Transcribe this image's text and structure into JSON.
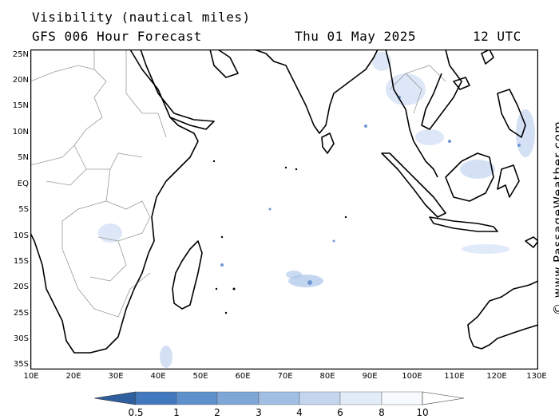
{
  "title_line1": "Visibility (nautical miles)",
  "model_line": "GFS 006 Hour Forecast",
  "date_text": "Thu 01 May 2025",
  "time_text": "12 UTC",
  "credit": "© www.PassageWeather.com",
  "lat_labels": [
    "25N",
    "20N",
    "15N",
    "10N",
    "5N",
    "EQ",
    "5S",
    "10S",
    "15S",
    "20S",
    "25S",
    "30S",
    "35S"
  ],
  "lon_labels": [
    "10E",
    "20E",
    "30E",
    "40E",
    "50E",
    "60E",
    "70E",
    "80E",
    "90E",
    "100E",
    "110E",
    "120E",
    "130E"
  ],
  "legend": {
    "labels": [
      "0.5",
      "1",
      "2",
      "3",
      "4",
      "6",
      "8",
      "10"
    ],
    "colors": [
      "#2e5f9e",
      "#4278bd",
      "#5e90cc",
      "#7ea7d8",
      "#a1bfe3",
      "#c3d6ee",
      "#e2ecf7",
      "#f6f9fd",
      "#ffffff"
    ]
  },
  "colors": {
    "land_border": "#9a9a9a",
    "coastline": "#000000",
    "low_vis": "#8fb2e0"
  }
}
